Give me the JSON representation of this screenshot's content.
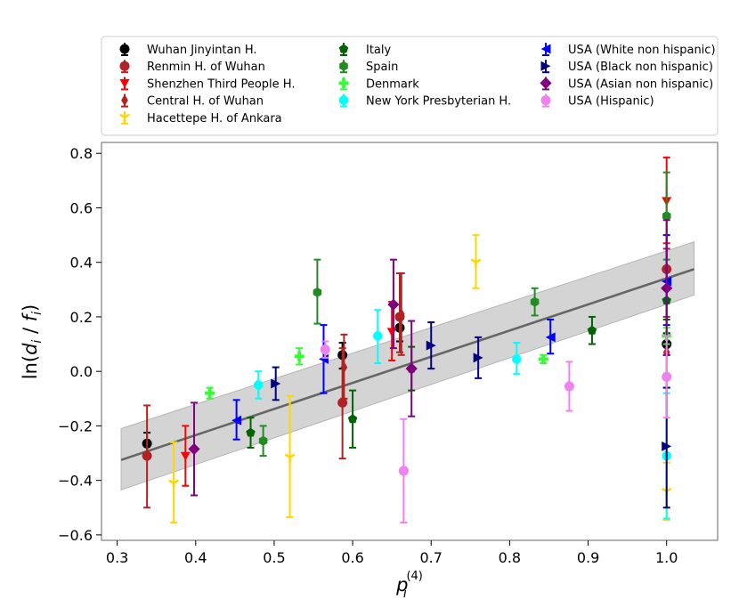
{
  "chart_data": {
    "type": "scatter",
    "xlabel_base": "p",
    "xlabel_sub": "i",
    "xlabel_sup": "(4)",
    "ylabel_prefix": "ln(",
    "ylabel_d": "d",
    "ylabel_sub1": "i",
    "ylabel_mid": " / ",
    "ylabel_f": "f",
    "ylabel_sub2": "i",
    "ylabel_suffix": ")",
    "xlim": [
      0.28,
      1.065
    ],
    "ylim": [
      -0.62,
      0.84
    ],
    "xticks": [
      0.3,
      0.4,
      0.5,
      0.6,
      0.7,
      0.8,
      0.9,
      1.0
    ],
    "xtick_labels": [
      "0.3",
      "0.4",
      "0.5",
      "0.6",
      "0.7",
      "0.8",
      "0.9",
      "1.0"
    ],
    "yticks": [
      -0.6,
      -0.4,
      -0.2,
      0.0,
      0.2,
      0.4,
      0.6,
      0.8
    ],
    "ytick_labels": [
      "−0.6",
      "−0.4",
      "−0.2",
      "0.0",
      "0.2",
      "0.4",
      "0.6",
      "0.8"
    ],
    "grid": false,
    "legend_position": "top, above plot, 3 columns",
    "fit": {
      "x": [
        0.305,
        1.035
      ],
      "y": [
        -0.325,
        0.375
      ],
      "band_upper": [
        -0.21,
        0.475
      ],
      "band_lower": [
        -0.435,
        0.28
      ],
      "line_color": "#666666",
      "band_color": "#cccccc"
    },
    "series": [
      {
        "name": "Wuhan Jinyintan H.",
        "color": "#000000",
        "marker": "circle",
        "points": [
          {
            "x": 0.338,
            "y": -0.265,
            "lo": -0.305,
            "hi": -0.225
          },
          {
            "x": 0.587,
            "y": 0.06,
            "lo": 0.01,
            "hi": 0.105
          },
          {
            "x": 0.66,
            "y": 0.16,
            "lo": 0.11,
            "hi": 0.21
          },
          {
            "x": 1.0,
            "y": 0.1,
            "lo": 0.06,
            "hi": 0.14
          }
        ]
      },
      {
        "name": "Renmin H. of Wuhan",
        "color": "#b22222",
        "marker": "circle",
        "points": [
          {
            "x": 0.338,
            "y": -0.31,
            "lo": -0.5,
            "hi": -0.125
          },
          {
            "x": 0.587,
            "y": -0.115,
            "lo": -0.32,
            "hi": 0.085
          },
          {
            "x": 0.66,
            "y": 0.2,
            "lo": 0.07,
            "hi": 0.36
          },
          {
            "x": 1.0,
            "y": 0.375,
            "lo": 0.3,
            "hi": 0.45
          }
        ]
      },
      {
        "name": "Shenzhen Third People H.",
        "color": "#ff0000",
        "marker": "triangle-down",
        "points": [
          {
            "x": 0.387,
            "y": -0.31,
            "lo": -0.42,
            "hi": -0.2
          },
          {
            "x": 0.65,
            "y": 0.145,
            "lo": 0.04,
            "hi": 0.255
          },
          {
            "x": 1.0,
            "y": 0.625,
            "lo": 0.47,
            "hi": 0.785
          }
        ]
      },
      {
        "name": "Central H. of Wuhan",
        "color": "#b22222",
        "marker": "thin-diamond",
        "points": [
          {
            "x": 0.589,
            "y": 0.015,
            "lo": -0.1,
            "hi": 0.135
          },
          {
            "x": 0.662,
            "y": 0.21,
            "lo": 0.06,
            "hi": 0.36
          },
          {
            "x": 1.0,
            "y": 0.07,
            "lo": -0.06,
            "hi": 0.2
          }
        ]
      },
      {
        "name": "Hacettepe H. of Ankara",
        "color": "#ffd700",
        "marker": "tri-down",
        "points": [
          {
            "x": 0.372,
            "y": -0.41,
            "lo": -0.555,
            "hi": -0.26
          },
          {
            "x": 0.52,
            "y": -0.315,
            "lo": -0.535,
            "hi": -0.09
          },
          {
            "x": 0.757,
            "y": 0.4,
            "lo": 0.305,
            "hi": 0.5
          },
          {
            "x": 1.0,
            "y": -0.44,
            "lo": -0.545,
            "hi": -0.335
          }
        ]
      },
      {
        "name": "Italy",
        "color": "#006400",
        "marker": "pentagon",
        "points": [
          {
            "x": 0.47,
            "y": -0.225,
            "lo": -0.28,
            "hi": -0.17
          },
          {
            "x": 0.6,
            "y": -0.175,
            "lo": -0.28,
            "hi": -0.07
          },
          {
            "x": 0.675,
            "y": 0.01,
            "lo": -0.07,
            "hi": 0.09
          },
          {
            "x": 0.905,
            "y": 0.15,
            "lo": 0.1,
            "hi": 0.2
          },
          {
            "x": 1.0,
            "y": 0.26,
            "lo": 0.19,
            "hi": 0.33
          }
        ]
      },
      {
        "name": "Spain",
        "color": "#228b22",
        "marker": "hexagon",
        "points": [
          {
            "x": 0.486,
            "y": -0.255,
            "lo": -0.31,
            "hi": -0.2
          },
          {
            "x": 0.555,
            "y": 0.29,
            "lo": 0.175,
            "hi": 0.41
          },
          {
            "x": 0.832,
            "y": 0.255,
            "lo": 0.205,
            "hi": 0.305
          },
          {
            "x": 1.0,
            "y": 0.57,
            "lo": 0.41,
            "hi": 0.73
          }
        ]
      },
      {
        "name": "Denmark",
        "color": "#32ff32",
        "marker": "plus",
        "points": [
          {
            "x": 0.418,
            "y": -0.08,
            "lo": -0.1,
            "hi": -0.06
          },
          {
            "x": 0.532,
            "y": 0.055,
            "lo": 0.025,
            "hi": 0.085
          },
          {
            "x": 0.843,
            "y": 0.045,
            "lo": 0.03,
            "hi": 0.06
          },
          {
            "x": 1.0,
            "y": 0.13,
            "lo": 0.1,
            "hi": 0.16
          }
        ]
      },
      {
        "name": "New York Presbyterian H.",
        "color": "#00ffff",
        "marker": "octagon",
        "points": [
          {
            "x": 0.48,
            "y": -0.05,
            "lo": -0.1,
            "hi": 0.0
          },
          {
            "x": 0.632,
            "y": 0.13,
            "lo": 0.03,
            "hi": 0.225
          },
          {
            "x": 0.809,
            "y": 0.045,
            "lo": -0.01,
            "hi": 0.105
          },
          {
            "x": 1.0,
            "y": -0.31,
            "lo": -0.54,
            "hi": -0.08
          }
        ]
      },
      {
        "name": "USA (White non hispanic)",
        "color": "#0000ff",
        "marker": "triangle-left",
        "points": [
          {
            "x": 0.452,
            "y": -0.18,
            "lo": -0.25,
            "hi": -0.105
          },
          {
            "x": 0.563,
            "y": 0.045,
            "lo": -0.08,
            "hi": 0.17
          },
          {
            "x": 0.852,
            "y": 0.125,
            "lo": 0.065,
            "hi": 0.19
          },
          {
            "x": 1.0,
            "y": 0.33,
            "lo": 0.17,
            "hi": 0.5
          }
        ]
      },
      {
        "name": "USA (Black non hispanic)",
        "color": "#000080",
        "marker": "triangle-right",
        "points": [
          {
            "x": 0.502,
            "y": -0.045,
            "lo": -0.105,
            "hi": 0.015
          },
          {
            "x": 0.7,
            "y": 0.095,
            "lo": 0.01,
            "hi": 0.18
          },
          {
            "x": 0.76,
            "y": 0.05,
            "lo": -0.025,
            "hi": 0.125
          },
          {
            "x": 1.0,
            "y": -0.275,
            "lo": -0.5,
            "hi": -0.06
          }
        ]
      },
      {
        "name": "USA (Asian non hispanic)",
        "color": "#800080",
        "marker": "diamond",
        "points": [
          {
            "x": 0.398,
            "y": -0.285,
            "lo": -0.455,
            "hi": -0.115
          },
          {
            "x": 0.652,
            "y": 0.245,
            "lo": 0.085,
            "hi": 0.41
          },
          {
            "x": 0.675,
            "y": 0.01,
            "lo": -0.165,
            "hi": 0.185
          },
          {
            "x": 1.0,
            "y": 0.305,
            "lo": 0.06,
            "hi": 0.555
          }
        ]
      },
      {
        "name": "USA (Hispanic)",
        "color": "#ee82ee",
        "marker": "circle",
        "points": [
          {
            "x": 0.565,
            "y": 0.08,
            "lo": 0.05,
            "hi": 0.11
          },
          {
            "x": 0.665,
            "y": -0.365,
            "lo": -0.555,
            "hi": -0.175
          },
          {
            "x": 0.876,
            "y": -0.055,
            "lo": -0.145,
            "hi": 0.035
          },
          {
            "x": 1.0,
            "y": -0.02,
            "lo": -0.17,
            "hi": 0.13
          }
        ]
      }
    ]
  }
}
